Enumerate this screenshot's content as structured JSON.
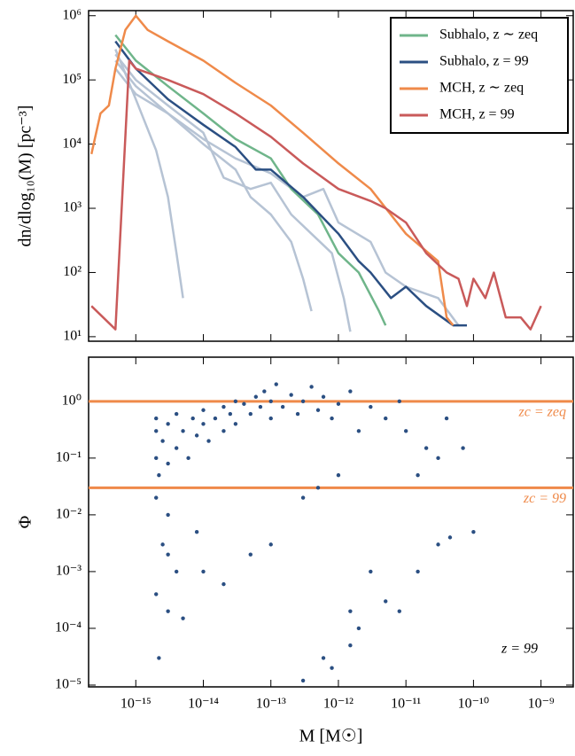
{
  "chart_data": [
    {
      "type": "line",
      "ylabel": "dn/dlog₁₀(M) [pc⁻³]",
      "xlog": true,
      "ylog": true,
      "xlim": [
        2e-16,
        3e-09
      ],
      "ylim": [
        8.5,
        1200000
      ],
      "yticks": [
        {
          "value": 10,
          "label": "10¹"
        },
        {
          "value": 100,
          "label": "10²"
        },
        {
          "value": 1000,
          "label": "10³"
        },
        {
          "value": 10000,
          "label": "10⁴"
        },
        {
          "value": 100000,
          "label": "10⁵"
        },
        {
          "value": 1000000,
          "label": "10⁶"
        }
      ],
      "legend": "upper right",
      "series": [
        {
          "color": "#b6c3d4",
          "x": [
            5e-16,
            1e-15,
            2e-15,
            3e-15,
            4e-15,
            5e-15
          ],
          "values": [
            300000,
            50000,
            8000,
            1500,
            200,
            40
          ]
        },
        {
          "color": "#b6c3d4",
          "x": [
            5e-16,
            1e-15,
            3e-15,
            1e-14,
            3e-14,
            5e-14,
            1e-13,
            2e-13,
            3e-13,
            4e-13
          ],
          "values": [
            200000,
            80000,
            30000,
            10000,
            4000,
            1500,
            800,
            300,
            80,
            25
          ]
        },
        {
          "color": "#b6c3d4",
          "x": [
            5e-16,
            1e-15,
            3e-15,
            1e-14,
            2e-14,
            5e-14,
            1e-13,
            2e-13,
            4e-13,
            8e-13,
            1.2e-12,
            1.5e-12
          ],
          "values": [
            250000,
            100000,
            40000,
            15000,
            3000,
            2000,
            2500,
            800,
            400,
            200,
            40,
            12
          ]
        },
        {
          "color": "#b6c3d4",
          "x": [
            5e-16,
            1e-15,
            3e-15,
            1e-14,
            3e-14,
            1e-13,
            3e-13,
            6e-13,
            1e-12,
            3e-12,
            5e-12,
            1e-11,
            3e-11,
            6e-11
          ],
          "values": [
            150000,
            60000,
            30000,
            12000,
            6000,
            3500,
            1500,
            2000,
            600,
            300,
            100,
            60,
            40,
            15
          ]
        },
        {
          "name": "Subhalo, z ∼ zeq",
          "color": "#6fb58a",
          "x": [
            5e-16,
            1e-15,
            3e-15,
            1e-14,
            3e-14,
            1e-13,
            2e-13,
            5e-13,
            1e-12,
            2e-12,
            4e-12,
            5e-12
          ],
          "values": [
            500000,
            200000,
            80000,
            30000,
            12000,
            6000,
            2000,
            800,
            200,
            100,
            25,
            15
          ]
        },
        {
          "name": "Subhalo, z = 99",
          "color": "#2b4f82",
          "x": [
            5e-16,
            1e-15,
            3e-15,
            1e-14,
            3e-14,
            6e-14,
            1e-13,
            3e-13,
            1e-12,
            2e-12,
            3e-12,
            6e-12,
            1e-11,
            2e-11,
            5e-11,
            8e-11
          ],
          "values": [
            400000,
            150000,
            50000,
            20000,
            9000,
            4000,
            4000,
            1500,
            400,
            150,
            100,
            40,
            60,
            30,
            15,
            15
          ]
        },
        {
          "name": "MCH, z ∼ zeq",
          "color": "#ef8a4a",
          "x": [
            2.2e-16,
            3e-16,
            4e-16,
            5e-16,
            7e-16,
            1e-15,
            1.5e-15,
            3e-15,
            1e-14,
            3e-14,
            1e-13,
            3e-13,
            1e-12,
            3e-12,
            1e-11,
            3e-11,
            4e-11,
            5e-11
          ],
          "values": [
            7000,
            30000,
            40000,
            150000,
            600000,
            1000000,
            600000,
            400000,
            200000,
            90000,
            40000,
            15000,
            5000,
            2000,
            400,
            150,
            20,
            15
          ]
        },
        {
          "name": "MCH, z = 99",
          "color": "#c95a5a",
          "x": [
            2.2e-16,
            5e-16,
            8e-16,
            1e-15,
            3e-15,
            1e-14,
            3e-14,
            1e-13,
            3e-13,
            1e-12,
            3e-12,
            5e-12,
            1e-11,
            2e-11,
            4e-11,
            6e-11,
            8e-11,
            1e-10,
            1.5e-10,
            2e-10,
            3e-10,
            5e-10,
            7e-10,
            1e-09
          ],
          "values": [
            30,
            13,
            200000,
            150000,
            100000,
            60000,
            30000,
            13000,
            5000,
            2000,
            1300,
            1000,
            600,
            200,
            100,
            80,
            30,
            80,
            40,
            100,
            20,
            20,
            13,
            30
          ]
        }
      ]
    },
    {
      "type": "scatter",
      "xlabel": "M [M☉]",
      "ylabel": "Φ",
      "xlog": true,
      "ylog": true,
      "xlim": [
        2e-16,
        3e-09
      ],
      "ylim": [
        9.3e-06,
        6
      ],
      "xticks": [
        {
          "value": 1e-15,
          "label": "10⁻¹⁵"
        },
        {
          "value": 1e-14,
          "label": "10⁻¹⁴"
        },
        {
          "value": 1e-13,
          "label": "10⁻¹³"
        },
        {
          "value": 1e-12,
          "label": "10⁻¹²"
        },
        {
          "value": 1e-11,
          "label": "10⁻¹¹"
        },
        {
          "value": 1e-10,
          "label": "10⁻¹⁰"
        },
        {
          "value": 1e-09,
          "label": "10⁻⁹"
        }
      ],
      "yticks": [
        {
          "value": 1e-05,
          "label": "10⁻⁵"
        },
        {
          "value": 0.0001,
          "label": "10⁻⁴"
        },
        {
          "value": 0.001,
          "label": "10⁻³"
        },
        {
          "value": 0.01,
          "label": "10⁻²"
        },
        {
          "value": 0.1,
          "label": "10⁻¹"
        },
        {
          "value": 1,
          "label": "10⁰"
        }
      ],
      "color": "#2b4f82",
      "hlines": [
        {
          "value": 1,
          "label": "zc = zeq"
        },
        {
          "value": 0.03,
          "label": "zc = 99"
        }
      ],
      "hline_color": "#ef8a4a",
      "annotation": "z = 99",
      "x": [
        2e-15,
        2e-15,
        2e-15,
        2e-15,
        2.2e-15,
        2.5e-15,
        3e-15,
        3e-15,
        3e-15,
        4e-15,
        4e-15,
        5e-15,
        6e-15,
        7e-15,
        8e-15,
        1e-14,
        1e-14,
        1.2e-14,
        1.5e-14,
        2e-14,
        2e-14,
        2.5e-14,
        3e-14,
        3e-14,
        4e-14,
        5e-14,
        6e-14,
        7e-14,
        8e-14,
        1e-13,
        1e-13,
        1.2e-13,
        1.5e-13,
        2e-13,
        2.5e-13,
        3e-13,
        4e-13,
        5e-13,
        6e-13,
        8e-13,
        1e-12,
        1.5e-12,
        2e-12,
        3e-12,
        5e-12,
        8e-12,
        1e-11,
        2e-11,
        3e-11,
        2.5e-15,
        2e-15,
        2.2e-15,
        3e-15,
        4e-15,
        5e-15,
        3e-15,
        8e-15,
        1e-14,
        2e-14,
        5e-14,
        1e-13,
        3e-13,
        5e-13,
        1e-12,
        1.5e-12,
        2e-12,
        3e-12,
        5e-12,
        8e-12,
        1.5e-11,
        3e-11,
        4.5e-11,
        1e-10,
        6e-13,
        8e-13,
        3e-13,
        1.5e-12,
        1.5e-11,
        7e-11,
        4e-11
      ],
      "values": [
        0.5,
        0.1,
        0.02,
        0.3,
        0.05,
        0.2,
        0.4,
        0.08,
        0.01,
        0.15,
        0.6,
        0.3,
        0.1,
        0.5,
        0.25,
        0.4,
        0.7,
        0.2,
        0.5,
        0.8,
        0.3,
        0.6,
        1,
        0.4,
        0.9,
        0.6,
        1.2,
        0.8,
        1.5,
        1,
        0.5,
        2,
        0.8,
        1.3,
        0.6,
        1,
        1.8,
        0.7,
        1.2,
        0.5,
        0.9,
        1.5,
        0.3,
        0.8,
        0.5,
        1,
        0.3,
        0.15,
        0.1,
        0.003,
        0.0004,
        3e-05,
        0.0002,
        0.001,
        0.00015,
        0.002,
        0.005,
        0.001,
        0.0006,
        0.002,
        0.003,
        0.02,
        0.03,
        0.05,
        0.0002,
        0.0001,
        0.001,
        0.0003,
        0.0002,
        0.001,
        0.003,
        0.004,
        0.005,
        3e-05,
        2e-05,
        1.2e-05,
        5e-05,
        0.05,
        0.15,
        0.5
      ]
    }
  ]
}
